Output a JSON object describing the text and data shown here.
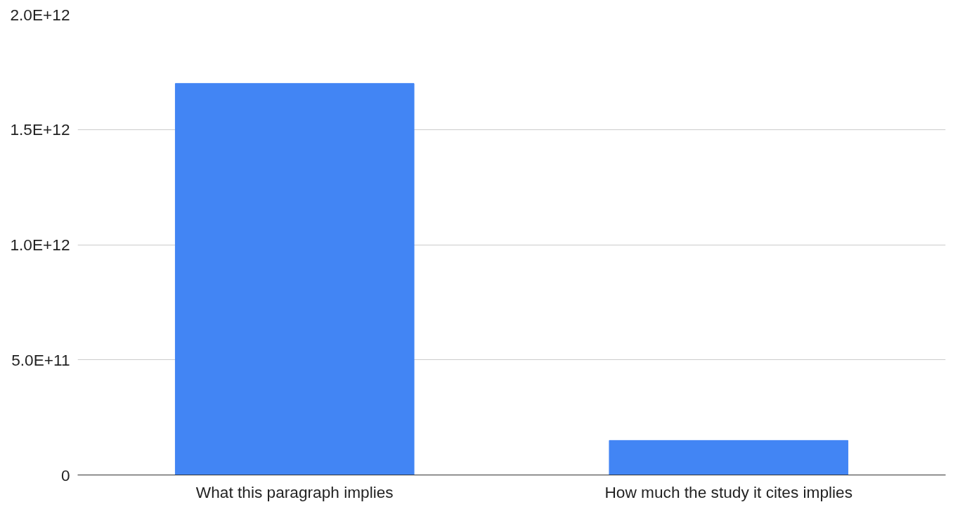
{
  "chart_data": {
    "type": "bar",
    "categories": [
      "What this paragraph implies",
      "How much the study it cites implies"
    ],
    "values": [
      1700000000000.0,
      150000000000.0
    ],
    "color": "#4285f4",
    "ylim": [
      0,
      2000000000000.0
    ],
    "yticks": [
      0,
      {
        "value": 500000000000.0,
        "label": "5.0E+11"
      },
      {
        "value": 1000000000000.0,
        "label": "1.0E+12"
      },
      {
        "value": 1500000000000.0,
        "label": "1.5E+12"
      },
      {
        "value": 2000000000000.0,
        "label": "2.0E+12"
      }
    ],
    "grid": "y"
  }
}
